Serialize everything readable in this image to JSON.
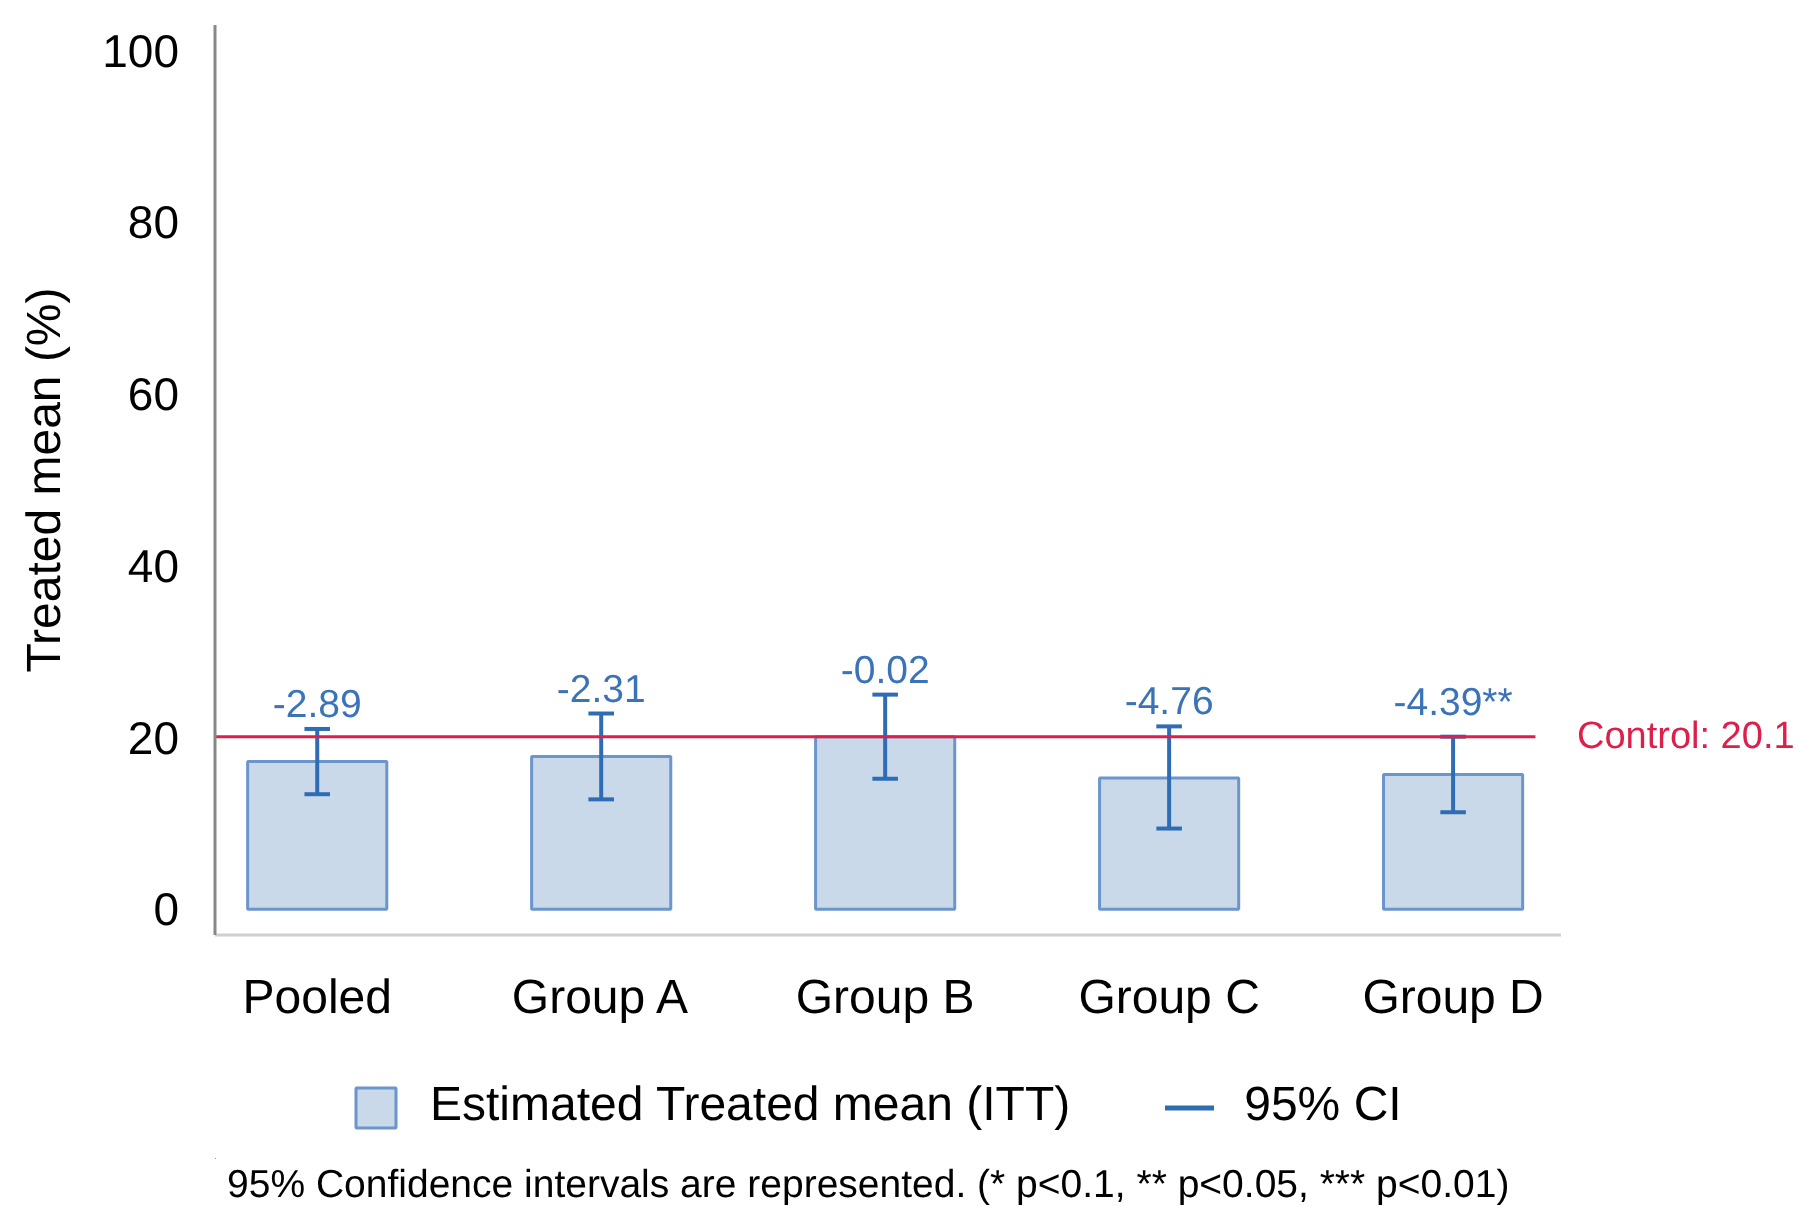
{
  "chart_data": {
    "type": "bar",
    "ylabel": "Treated mean (%)",
    "categories": [
      "Pooled",
      "Group A",
      "Group B",
      "Group C",
      "Group D"
    ],
    "series": [
      {
        "name": "Estimated Treated mean (ITT)",
        "color": "#c9d9ea",
        "values": [
          17.2,
          17.8,
          20.1,
          15.3,
          15.7
        ],
        "errors": [
          [
            13.4,
            21.0
          ],
          [
            12.8,
            22.8
          ],
          [
            15.2,
            25.0
          ],
          [
            9.4,
            21.3
          ],
          [
            11.3,
            20.1
          ]
        ]
      }
    ],
    "ylim": [
      -3,
      103
    ],
    "yticks": [
      0,
      20,
      40,
      60,
      80,
      100
    ],
    "ref_lines": [
      {
        "axis": "y",
        "value": 20.1,
        "label": "Control: 20.1",
        "color": "#dc1f4b"
      }
    ],
    "annotations": [
      {
        "text": "-2.89",
        "x": "Pooled",
        "y": 21.0
      },
      {
        "text": "-2.31",
        "x": "Group A",
        "y": 22.8
      },
      {
        "text": "-0.02",
        "x": "Group B",
        "y": 25.0
      },
      {
        "text": "-4.76",
        "x": "Group C",
        "y": 21.3
      },
      {
        "text": "-4.39**",
        "x": "Group D",
        "y": 20.1
      },
      "95% CI",
      "95% Confidence intervals are represented. (* p<0.1, ** p<0.05, *** p<0.01)"
    ],
    "grid": false,
    "legend": "bottom"
  }
}
